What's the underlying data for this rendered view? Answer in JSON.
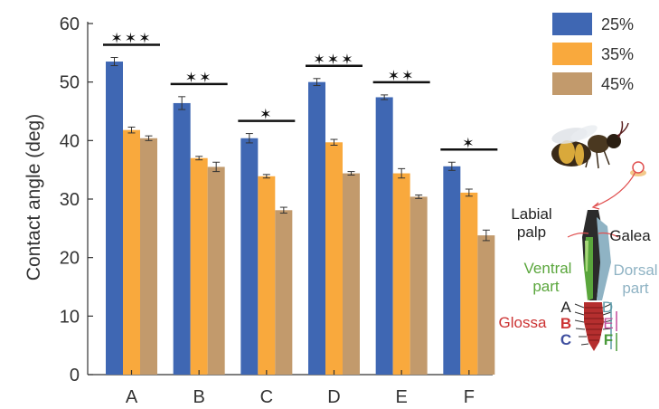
{
  "chart_data": {
    "type": "bar",
    "ylabel": "Contact angle (deg)",
    "ylim": [
      0,
      60
    ],
    "yticks": [
      0,
      10,
      20,
      30,
      40,
      50,
      60
    ],
    "categories": [
      "A",
      "B",
      "C",
      "D",
      "E",
      "F"
    ],
    "series": [
      {
        "name": "25%",
        "color": "#3f67b3",
        "values": [
          53.5,
          46.4,
          40.4,
          50.0,
          47.4,
          35.6
        ],
        "errors": [
          0.7,
          1.1,
          0.8,
          0.6,
          0.4,
          0.7
        ]
      },
      {
        "name": "35%",
        "color": "#f9a93d",
        "values": [
          41.8,
          37.0,
          33.9,
          39.7,
          34.4,
          31.1
        ],
        "errors": [
          0.5,
          0.3,
          0.3,
          0.5,
          0.8,
          0.6
        ]
      },
      {
        "name": "45%",
        "color": "#c29a6c",
        "values": [
          40.4,
          35.5,
          28.1,
          34.4,
          30.4,
          23.8
        ],
        "errors": [
          0.4,
          0.8,
          0.5,
          0.3,
          0.3,
          0.9
        ]
      }
    ],
    "significance": [
      "✶✶✶",
      "✶✶",
      "✶",
      "✶✶✶",
      "✶✶",
      "✶"
    ],
    "legend_position": "top-right"
  },
  "schematic": {
    "labial_palp": [
      "Labial",
      "palp"
    ],
    "galea": "Galea",
    "ventral_part": [
      "Ventral",
      "part"
    ],
    "dorsal_part": [
      "Dorsal",
      "part"
    ],
    "glossa": "Glossa",
    "region_letters": [
      "A",
      "B",
      "C",
      "D",
      "E",
      "F"
    ],
    "colors": {
      "ventral": "#5aa63c",
      "dorsal": "#8fb3c4",
      "glossa": "#cc3333",
      "letter_a": "#222222",
      "letter_b": "#cc3333",
      "letter_c": "#3f4f9f",
      "letter_d": "#5f9aa8",
      "letter_e": "#c24a9a",
      "letter_f": "#4a9a3a"
    }
  }
}
